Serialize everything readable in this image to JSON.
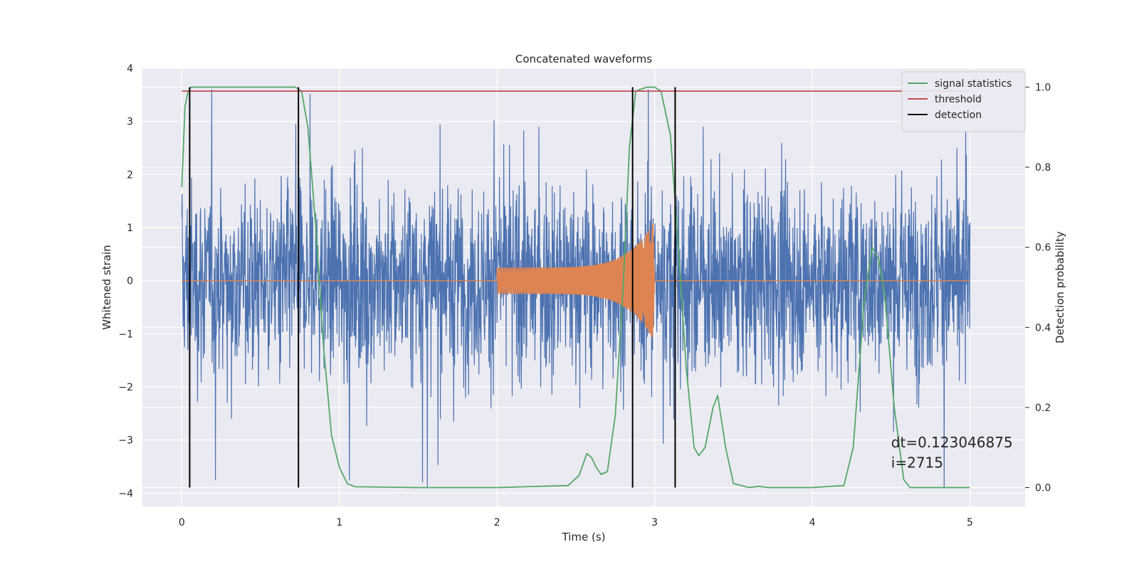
{
  "chart_data": {
    "type": "line",
    "title": "Concatenated waveforms",
    "xlabel": "Time (s)",
    "ylabel": "Whitened strain",
    "y2label": "Detection probability",
    "xlim": [
      -0.25,
      5.35
    ],
    "ylim": [
      -4.25,
      4.0
    ],
    "y2lim": [
      -0.047,
      1.047
    ],
    "x_ticks": [
      0,
      1,
      2,
      3,
      4,
      5
    ],
    "x_tick_labels": [
      "0",
      "1",
      "2",
      "3",
      "4",
      "5"
    ],
    "y_ticks": [
      -4,
      -3,
      -2,
      -1,
      0,
      1,
      2,
      3,
      4
    ],
    "y_tick_labels": [
      "−4",
      "−3",
      "−2",
      "−1",
      "0",
      "1",
      "2",
      "3",
      "4"
    ],
    "y2_ticks": [
      0.0,
      0.2,
      0.4,
      0.6,
      0.8,
      1.0
    ],
    "y2_tick_labels": [
      "0.0",
      "0.2",
      "0.4",
      "0.6",
      "0.8",
      "1.0"
    ],
    "grid": true,
    "legend_position": "top-right",
    "series": [
      {
        "name": "",
        "kind": "noise",
        "axis": "left",
        "color": "#4c72b0",
        "x_range": [
          0,
          5
        ],
        "std": 0.9,
        "min": -3.9,
        "max": 3.6
      },
      {
        "name": "",
        "kind": "chirp",
        "axis": "left",
        "color": "#dd8452",
        "x_range": [
          0,
          5
        ],
        "chirp_start": 2.0,
        "chirp_end": 3.0,
        "amplitude_start": 0.25,
        "amplitude_peak": 1.15
      },
      {
        "name": "signal statistics",
        "axis": "right",
        "color": "#55a868",
        "x": [
          0.0,
          0.02,
          0.04,
          0.06,
          0.1,
          0.3,
          0.6,
          0.72,
          0.76,
          0.8,
          0.85,
          0.9,
          0.95,
          1.0,
          1.05,
          1.1,
          1.5,
          2.0,
          2.45,
          2.52,
          2.57,
          2.6,
          2.63,
          2.66,
          2.7,
          2.75,
          2.8,
          2.84,
          2.88,
          2.95,
          3.0,
          3.04,
          3.1,
          3.15,
          3.2,
          3.25,
          3.28,
          3.32,
          3.37,
          3.4,
          3.45,
          3.5,
          3.6,
          3.66,
          3.72,
          4.0,
          4.2,
          4.26,
          4.33,
          4.38,
          4.42,
          4.46,
          4.52,
          4.58,
          4.62,
          4.7,
          5.0
        ],
        "y": [
          0.75,
          0.95,
          0.99,
          1.0,
          1.0,
          1.0,
          1.0,
          1.0,
          0.99,
          0.9,
          0.65,
          0.35,
          0.13,
          0.05,
          0.01,
          0.002,
          0.0,
          0.0,
          0.005,
          0.03,
          0.085,
          0.075,
          0.05,
          0.033,
          0.04,
          0.18,
          0.5,
          0.85,
          0.99,
          1.0,
          1.0,
          0.99,
          0.88,
          0.6,
          0.3,
          0.1,
          0.08,
          0.1,
          0.2,
          0.23,
          0.1,
          0.01,
          0.0,
          0.003,
          0.0,
          0.0,
          0.005,
          0.1,
          0.47,
          0.6,
          0.57,
          0.48,
          0.2,
          0.02,
          0.0,
          0.0,
          0.0
        ]
      },
      {
        "name": "threshold",
        "axis": "right",
        "color": "#c44e52",
        "x": [
          0,
          5
        ],
        "y": [
          0.99,
          0.99
        ]
      },
      {
        "name": "detection",
        "axis": "right",
        "color": "#000000",
        "kind": "vlines",
        "x": [
          0.05,
          0.74,
          2.86,
          3.13
        ],
        "y_range": [
          0.0,
          1.0
        ]
      }
    ],
    "annotations": [
      {
        "text": "dt=0.123046875",
        "x": 4.5,
        "y": 0.1,
        "axis": "right"
      },
      {
        "text": " i=2715",
        "x": 4.5,
        "y": 0.05,
        "axis": "right"
      }
    ]
  }
}
